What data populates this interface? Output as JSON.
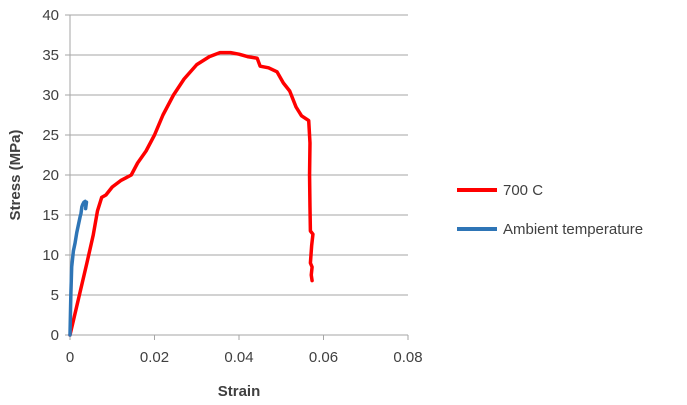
{
  "chart_data": {
    "type": "line",
    "title": "",
    "xlabel": "Strain",
    "ylabel": "Stress (MPa)",
    "xlim": [
      0,
      0.08
    ],
    "ylim": [
      0,
      40
    ],
    "x_ticks": [
      "0",
      "0.02",
      "0.04",
      "0.06",
      "0.08"
    ],
    "y_ticks": [
      "0",
      "5",
      "10",
      "15",
      "20",
      "25",
      "30",
      "35",
      "40"
    ],
    "grid": "horizontal",
    "legend_position": "right",
    "series": [
      {
        "name": "700 C",
        "color": "#ff0000",
        "points": [
          [
            0,
            0
          ],
          [
            0.002,
            4.5
          ],
          [
            0.004,
            9
          ],
          [
            0.0055,
            12.5
          ],
          [
            0.0065,
            15.5
          ],
          [
            0.0075,
            17.2
          ],
          [
            0.0085,
            17.5
          ],
          [
            0.01,
            18.5
          ],
          [
            0.012,
            19.3
          ],
          [
            0.0145,
            20
          ],
          [
            0.016,
            21.5
          ],
          [
            0.018,
            23
          ],
          [
            0.02,
            25
          ],
          [
            0.022,
            27.5
          ],
          [
            0.0245,
            30
          ],
          [
            0.027,
            32
          ],
          [
            0.03,
            33.8
          ],
          [
            0.033,
            34.8
          ],
          [
            0.0355,
            35.3
          ],
          [
            0.038,
            35.3
          ],
          [
            0.04,
            35.1
          ],
          [
            0.042,
            34.8
          ],
          [
            0.0443,
            34.6
          ],
          [
            0.045,
            33.6
          ],
          [
            0.047,
            33.4
          ],
          [
            0.049,
            32.9
          ],
          [
            0.0505,
            31.5
          ],
          [
            0.052,
            30.5
          ],
          [
            0.0535,
            28.5
          ],
          [
            0.0548,
            27.4
          ],
          [
            0.0565,
            26.8
          ],
          [
            0.0568,
            24
          ],
          [
            0.0567,
            20
          ],
          [
            0.0568,
            16
          ],
          [
            0.0569,
            13
          ],
          [
            0.0575,
            12.6
          ],
          [
            0.0572,
            11.2
          ],
          [
            0.0569,
            9
          ],
          [
            0.0573,
            8.5
          ],
          [
            0.0571,
            7.5
          ],
          [
            0.0573,
            6.8
          ]
        ]
      },
      {
        "name": "Ambient temperature",
        "color": "#2e75b6",
        "points": [
          [
            0,
            0
          ],
          [
            0.0002,
            5
          ],
          [
            0.0004,
            8.5
          ],
          [
            0.0008,
            10.5
          ],
          [
            0.0012,
            11.5
          ],
          [
            0.0016,
            12.8
          ],
          [
            0.002,
            13.8
          ],
          [
            0.0024,
            14.8
          ],
          [
            0.0026,
            15.2
          ],
          [
            0.0028,
            16
          ],
          [
            0.003,
            16.3
          ],
          [
            0.0033,
            16.6
          ],
          [
            0.0036,
            16.7
          ],
          [
            0.0038,
            16.4
          ],
          [
            0.0037,
            15.8
          ],
          [
            0.0039,
            16.6
          ]
        ]
      }
    ]
  }
}
